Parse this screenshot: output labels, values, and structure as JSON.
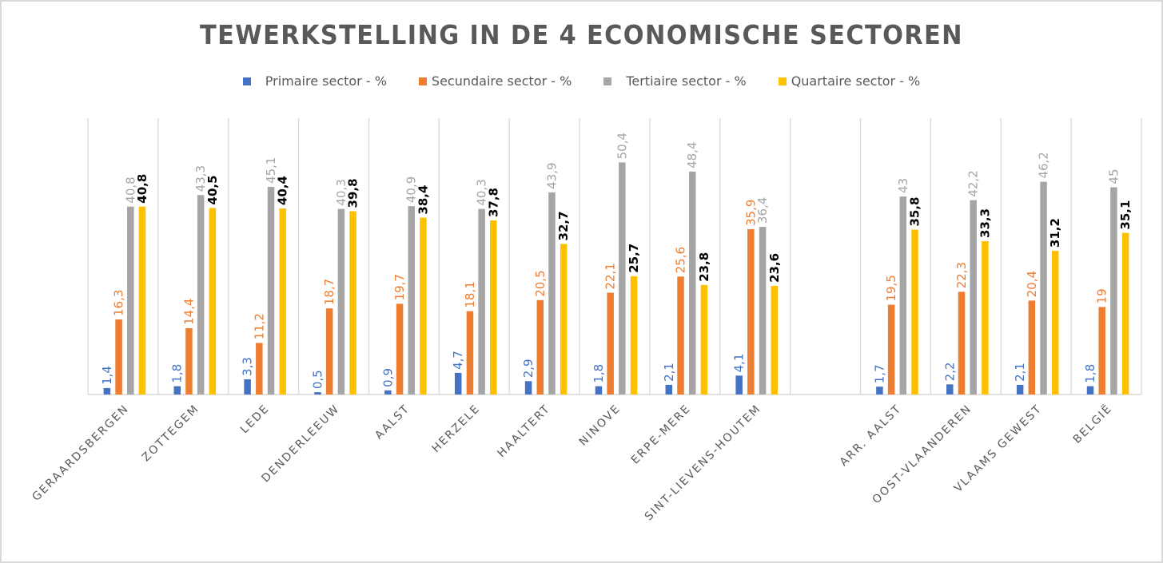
{
  "chart_data": {
    "type": "bar",
    "title": "TEWERKSTELLING IN DE 4 ECONOMISCHE SECTOREN",
    "xlabel": "",
    "ylabel": "",
    "ylim": [
      0,
      60
    ],
    "grid": false,
    "legend_position": "top",
    "categories": [
      "GERAARDSBERGEN",
      "ZOTTEGEM",
      "LEDE",
      "DENDERLEEUW",
      "AALST",
      "HERZELE",
      "HAALTERT",
      "NINOVE",
      "ERPE-MERE",
      "SINT-LIEVENS-HOUTEM",
      "",
      "ARR. AALST",
      "OOST-VLAANDEREN",
      "VLAAMS GEWEST",
      "BELGIË"
    ],
    "series": [
      {
        "name": "Primaire sector - %",
        "color": "#4472C4",
        "label_color": "#4472C4",
        "values": [
          1.4,
          1.8,
          3.3,
          0.5,
          0.9,
          4.7,
          2.9,
          1.8,
          2.1,
          4.1,
          null,
          1.7,
          2.2,
          2.1,
          1.8
        ],
        "labels": [
          "1,4",
          "1,8",
          "3,3",
          "0,5",
          "0,9",
          "4,7",
          "2,9",
          "1,8",
          "2,1",
          "4,1",
          "",
          "1,7",
          "2,2",
          "2,1",
          "1,8"
        ]
      },
      {
        "name": "Secundaire sector - %",
        "color": "#ED7D31",
        "label_color": "#ED7D31",
        "values": [
          16.3,
          14.4,
          11.2,
          18.7,
          19.7,
          18.1,
          20.5,
          22.1,
          25.6,
          35.9,
          null,
          19.5,
          22.3,
          20.4,
          19
        ],
        "labels": [
          "16,3",
          "14,4",
          "11,2",
          "18,7",
          "19,7",
          "18,1",
          "20,5",
          "22,1",
          "25,6",
          "35,9",
          "",
          "19,5",
          "22,3",
          "20,4",
          "19"
        ]
      },
      {
        "name": "Tertiaire sector - %",
        "color": "#A5A5A5",
        "label_color": "#A5A5A5",
        "values": [
          40.8,
          43.3,
          45.1,
          40.3,
          40.9,
          40.3,
          43.9,
          50.4,
          48.4,
          36.4,
          null,
          43,
          42.2,
          46.2,
          45
        ],
        "labels": [
          "40,8",
          "43,3",
          "45,1",
          "40,3",
          "40,9",
          "40,3",
          "43,9",
          "50,4",
          "48,4",
          "36,4",
          "",
          "43",
          "42,2",
          "46,2",
          "45"
        ]
      },
      {
        "name": "Quartaire sector - %",
        "color": "#FFC000",
        "label_color": "#000000",
        "values": [
          40.8,
          40.5,
          40.4,
          39.8,
          38.4,
          37.8,
          32.7,
          25.7,
          23.8,
          23.6,
          null,
          35.8,
          33.3,
          31.2,
          35.1
        ],
        "labels": [
          "40,8",
          "40,5",
          "40,4",
          "39,8",
          "38,4",
          "37,8",
          "32,7",
          "25,7",
          "23,8",
          "23,6",
          "",
          "35,8",
          "33,3",
          "31,2",
          "35,1"
        ]
      }
    ]
  }
}
